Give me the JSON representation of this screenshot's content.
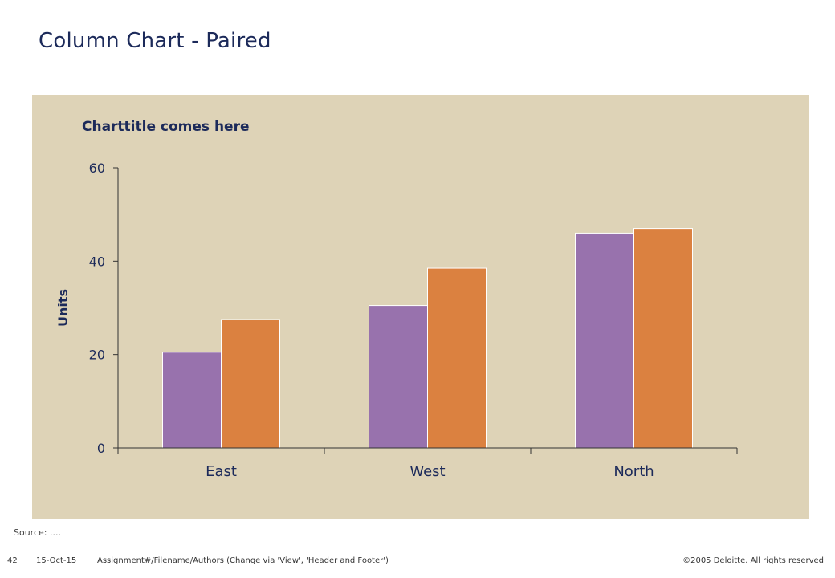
{
  "slide": {
    "title": "Column Chart - Paired",
    "source": "Source: ....",
    "footer": {
      "page": "42",
      "date": "15-Oct-15",
      "path": "Assignment#/Filename/Authors (Change via 'View', 'Header and Footer')",
      "copyright": "©2005 Deloitte. All rights reserved"
    }
  },
  "chart_data": {
    "type": "bar",
    "title": "Charttitle comes here",
    "xlabel": "",
    "ylabel": "Units",
    "categories": [
      "East",
      "West",
      "North"
    ],
    "series": [
      {
        "values": [
          20.5,
          30.5,
          46
        ],
        "color": "#9872ad"
      },
      {
        "values": [
          27.5,
          38.5,
          47
        ],
        "color": "#db8140"
      }
    ],
    "ylim": [
      0,
      60
    ],
    "yticks": [
      0,
      20,
      40,
      60
    ],
    "grid": false,
    "legend": "none"
  }
}
